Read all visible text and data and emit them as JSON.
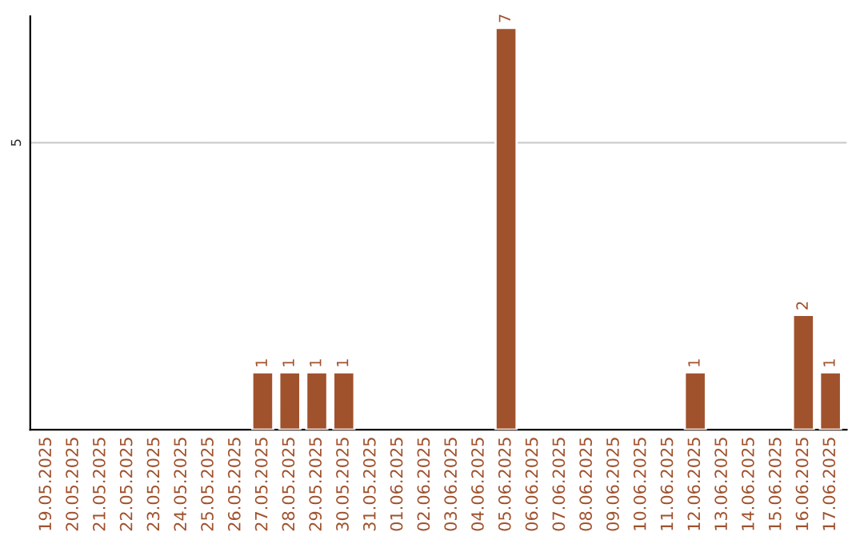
{
  "chart_data": {
    "type": "bar",
    "categories": [
      "19.05.2025",
      "20.05.2025",
      "21.05.2025",
      "22.05.2025",
      "23.05.2025",
      "24.05.2025",
      "25.05.2025",
      "26.05.2025",
      "27.05.2025",
      "28.05.2025",
      "29.05.2025",
      "30.05.2025",
      "31.05.2025",
      "01.06.2025",
      "02.06.2025",
      "03.06.2025",
      "04.06.2025",
      "05.06.2025",
      "06.06.2025",
      "07.06.2025",
      "08.06.2025",
      "09.06.2025",
      "10.06.2025",
      "11.06.2025",
      "12.06.2025",
      "13.06.2025",
      "14.06.2025",
      "15.06.2025",
      "16.06.2025",
      "17.06.2025"
    ],
    "values": [
      null,
      null,
      null,
      null,
      null,
      null,
      null,
      null,
      1,
      1,
      1,
      1,
      null,
      null,
      null,
      null,
      null,
      7,
      null,
      null,
      null,
      null,
      null,
      null,
      1,
      null,
      null,
      null,
      2,
      1
    ],
    "value_labels": [
      null,
      null,
      null,
      null,
      null,
      null,
      null,
      null,
      "1",
      "1",
      "1",
      "1",
      null,
      null,
      null,
      null,
      null,
      "7",
      null,
      null,
      null,
      null,
      null,
      null,
      "1",
      null,
      null,
      null,
      "2",
      "1"
    ],
    "color": "#a0522d",
    "ylim": [
      0,
      7.2
    ],
    "yticks": [
      5
    ],
    "grid": "y"
  }
}
